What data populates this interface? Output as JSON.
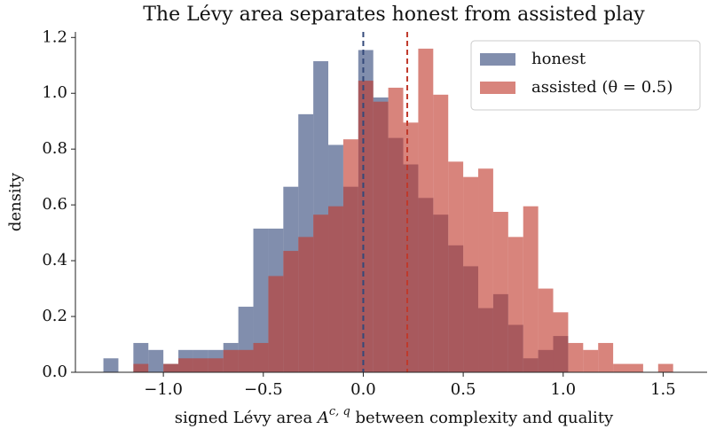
{
  "chart_data": {
    "type": "histogram",
    "title": "The Lévy area separates honest from assisted play",
    "xlabel": {
      "text": "signed Lévy area ",
      "symbol": "A",
      "superscript": "c, q",
      "rest": " between complexity and quality"
    },
    "ylabel": "density",
    "xlim": [
      -1.44,
      1.72
    ],
    "ylim": [
      0,
      1.22
    ],
    "xticks": [
      {
        "value": -1.0,
        "label": "−1.0"
      },
      {
        "value": -0.5,
        "label": "−0.5"
      },
      {
        "value": 0.0,
        "label": "0.0"
      },
      0.5,
      {
        "value": 1.0,
        "label": "1.0"
      },
      1.5
    ],
    "yticks": [
      {
        "value": 0.0,
        "label": "0.0"
      },
      0.2,
      0.4,
      0.6,
      0.8,
      {
        "value": 1.0,
        "label": "1.0"
      },
      1.2
    ],
    "legend": "upper right",
    "series": [
      {
        "name": "honest",
        "color": "#34497a",
        "vline": 0.0,
        "bins": [
          -1.3,
          -1.225,
          -1.15,
          -1.075,
          -1.0,
          -0.925,
          -0.85,
          -0.775,
          -0.7,
          -0.625,
          -0.55,
          -0.475,
          -0.4,
          -0.325,
          -0.25,
          -0.175,
          -0.1,
          -0.025,
          0.05,
          0.125,
          0.2,
          0.275,
          0.35,
          0.425,
          0.5,
          0.575,
          0.65,
          0.725,
          0.8,
          0.875,
          0.95,
          1.025
        ],
        "values": [
          0.05,
          0,
          0.105,
          0.08,
          0.03,
          0.08,
          0.08,
          0.08,
          0.105,
          0.235,
          0.515,
          0.515,
          0.665,
          0.925,
          1.115,
          0.815,
          0.665,
          1.155,
          0.985,
          0.84,
          0.745,
          0.625,
          0.565,
          0.455,
          0.38,
          0.23,
          0.28,
          0.17,
          0.05,
          0.08,
          0.13
        ]
      },
      {
        "name": "assisted (θ = 0.5)",
        "color": "#c0392b",
        "vline": 0.22,
        "bins": [
          -1.15,
          -1.075,
          -1.0,
          -0.925,
          -0.85,
          -0.775,
          -0.7,
          -0.625,
          -0.55,
          -0.475,
          -0.4,
          -0.325,
          -0.25,
          -0.175,
          -0.1,
          -0.025,
          0.05,
          0.125,
          0.2,
          0.275,
          0.35,
          0.425,
          0.5,
          0.575,
          0.65,
          0.725,
          0.8,
          0.875,
          0.95,
          1.025,
          1.1,
          1.175,
          1.25,
          1.325,
          1.4,
          1.475,
          1.55
        ],
        "values": [
          0.03,
          0,
          0.03,
          0.05,
          0.05,
          0.05,
          0.08,
          0.08,
          0.105,
          0.345,
          0.435,
          0.485,
          0.565,
          0.595,
          0.835,
          1.045,
          0.97,
          1.02,
          0.895,
          1.16,
          0.995,
          0.755,
          0.7,
          0.73,
          0.575,
          0.485,
          0.595,
          0.3,
          0.215,
          0.105,
          0.08,
          0.105,
          0.03,
          0.03,
          0,
          0.03
        ]
      }
    ]
  }
}
